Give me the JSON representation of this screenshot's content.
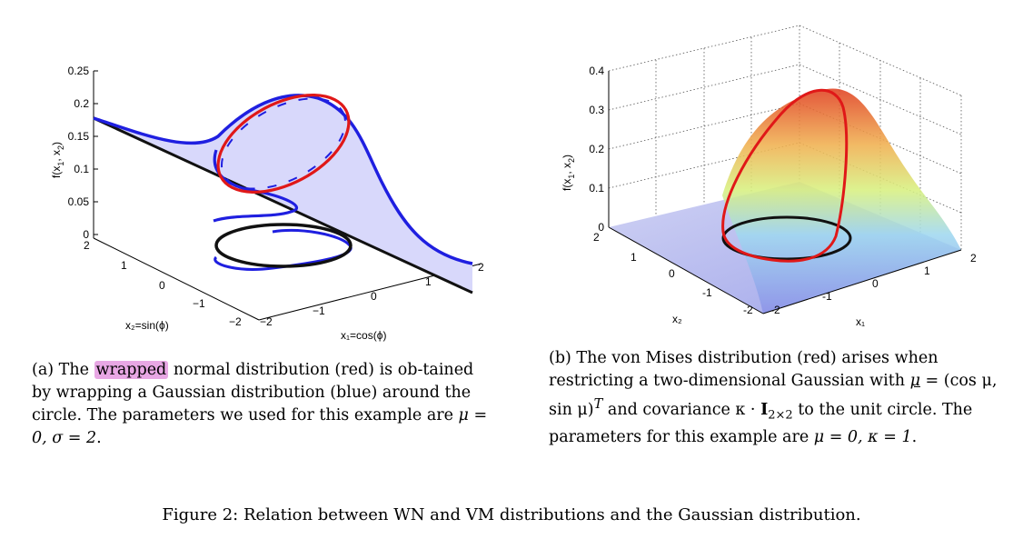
{
  "subfig_a": {
    "z_ticks": [
      "0.25",
      "0.2",
      "0.15",
      "0.1",
      "0.05",
      "0"
    ],
    "z_label_main": "f(x",
    "z_label_s1": "1",
    "z_label_mid": ", x",
    "z_label_s2": "2",
    "z_label_end": ")",
    "x2_ticks": [
      "2",
      "1",
      "0",
      "−1",
      "−2"
    ],
    "x1_ticks": [
      "−2",
      "−1",
      "0",
      "1",
      "2"
    ],
    "x2_label": "x₂=sin(ϕ)",
    "x1_label": "x₁=cos(ϕ)",
    "caption_1": "(a) The ",
    "caption_highlight": "wrapped",
    "caption_2": " normal distribution (red) is ob-tained by wrapping a Gaussian distribution (blue) around the circle. The parameters we used for this example are ",
    "caption_math": "μ = 0, σ = 2",
    "caption_end": "."
  },
  "subfig_b": {
    "z_ticks": [
      "0.4",
      "0.3",
      "0.2",
      "0.1",
      "0"
    ],
    "z_label_main": "f(x",
    "z_label_s1": "1",
    "z_label_mid": ", x",
    "z_label_s2": "2",
    "z_label_end": ")",
    "x2_ticks": [
      "2",
      "1",
      "0",
      "-1",
      "-2"
    ],
    "x1_ticks": [
      "-2",
      "-1",
      "0",
      "1",
      "2"
    ],
    "x2_label": "x₂",
    "x1_label": "x₁",
    "caption_1": "(b) The von Mises distribution (red) arises when restricting a two-dimensional Gaussian with ",
    "caption_mu": "μ",
    "caption_2": " = (cos μ, sin μ)",
    "caption_sup": "T",
    "caption_3": " and covariance κ · ",
    "caption_bold": "I",
    "caption_sub": "2×2",
    "caption_4": " to the unit circle. The parameters for this example are ",
    "caption_math": "μ = 0, κ = 1",
    "caption_end": "."
  },
  "figure_caption": "Figure 2: Relation between WN and VM distributions and the Gaussian distribution.",
  "colors": {
    "gaussian": "#1f1fe0",
    "wrapped": "#e01818",
    "circle": "#111111",
    "fill": "#d8d8fb"
  }
}
